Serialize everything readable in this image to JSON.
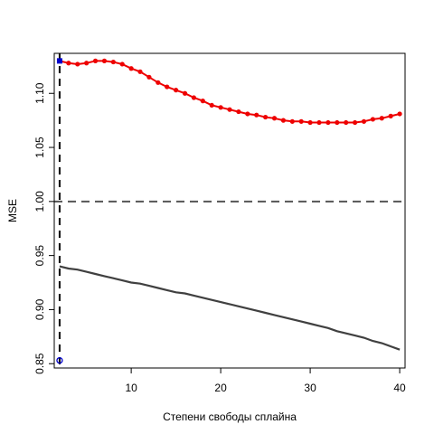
{
  "chart_data": {
    "type": "line",
    "xlabel": "Степени свободы сплайна",
    "ylabel": "MSE",
    "xlim": [
      1.4,
      40.6
    ],
    "ylim": [
      0.846,
      1.137
    ],
    "x_ticks": [
      10,
      20,
      30,
      40
    ],
    "y_ticks": [
      0.85,
      0.9,
      0.95,
      1.0,
      1.05,
      1.1
    ],
    "y_tick_labels": [
      "0.85",
      "0.90",
      "0.95",
      "1.00",
      "1.05",
      "1.10"
    ],
    "x_tick_labels": [
      "10",
      "20",
      "30",
      "40"
    ],
    "reference_line": {
      "y": 1.0,
      "style": "dashed",
      "color": "#555555"
    },
    "vertical_line": {
      "x": 2,
      "style": "dashed",
      "color": "#000000"
    },
    "markers": [
      {
        "x": 2,
        "y": 1.13,
        "shape": "square",
        "color": "#0000cc"
      },
      {
        "x": 2,
        "y": 0.853,
        "shape": "circle",
        "color": "#0000cc"
      }
    ],
    "series": [
      {
        "color": "#ee0000",
        "style": "line+points",
        "x": [
          2,
          3,
          4,
          5,
          6,
          7,
          8,
          9,
          10,
          11,
          12,
          13,
          14,
          15,
          16,
          17,
          18,
          19,
          20,
          21,
          22,
          23,
          24,
          25,
          26,
          27,
          28,
          29,
          30,
          31,
          32,
          33,
          34,
          35,
          36,
          37,
          38,
          39,
          40
        ],
        "values": [
          1.13,
          1.128,
          1.127,
          1.128,
          1.13,
          1.13,
          1.129,
          1.127,
          1.123,
          1.12,
          1.115,
          1.11,
          1.106,
          1.103,
          1.1,
          1.096,
          1.093,
          1.089,
          1.087,
          1.085,
          1.083,
          1.081,
          1.08,
          1.078,
          1.077,
          1.075,
          1.074,
          1.074,
          1.073,
          1.073,
          1.073,
          1.073,
          1.073,
          1.073,
          1.074,
          1.076,
          1.077,
          1.079,
          1.081
        ]
      },
      {
        "color": "#404040",
        "style": "line",
        "x": [
          2,
          3,
          4,
          5,
          6,
          7,
          8,
          9,
          10,
          11,
          12,
          13,
          14,
          15,
          16,
          17,
          18,
          19,
          20,
          21,
          22,
          23,
          24,
          25,
          26,
          27,
          28,
          29,
          30,
          31,
          32,
          33,
          34,
          35,
          36,
          37,
          38,
          39,
          40
        ],
        "values": [
          0.94,
          0.938,
          0.937,
          0.935,
          0.933,
          0.931,
          0.929,
          0.927,
          0.925,
          0.924,
          0.922,
          0.92,
          0.918,
          0.916,
          0.915,
          0.913,
          0.911,
          0.909,
          0.907,
          0.905,
          0.903,
          0.901,
          0.899,
          0.897,
          0.895,
          0.893,
          0.891,
          0.889,
          0.887,
          0.885,
          0.883,
          0.88,
          0.878,
          0.876,
          0.874,
          0.871,
          0.869,
          0.866,
          0.863
        ]
      }
    ]
  }
}
